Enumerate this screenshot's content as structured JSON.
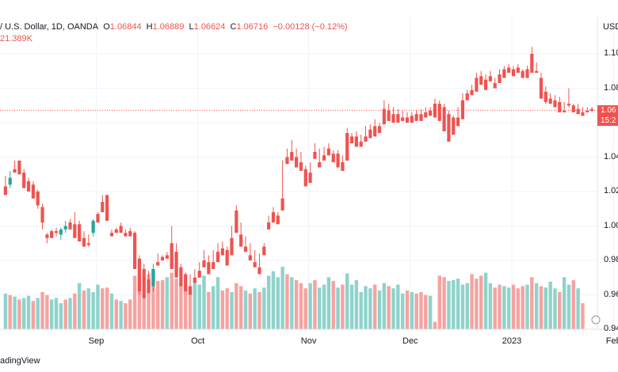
{
  "header": {
    "symbol": "/ U.S. Dollar, 1D, OANDA",
    "open_label": "O",
    "open": "1.06844",
    "high_label": "H",
    "high": "1.06889",
    "low_label": "L",
    "low": "1.06624",
    "close_label": "C",
    "close": "1.06716",
    "change": "−0.00128 (−0.12%)",
    "volume": "21.389K"
  },
  "axis": {
    "currency": "USD",
    "price_tag_value": "1.06",
    "price_tag_time": "15:2",
    "brand": "adingView"
  },
  "colors": {
    "up": "#26a69a",
    "down": "#ef5350",
    "vol_up": "#8fd3cb",
    "vol_down": "#f5a3a1",
    "grid": "#f0f3fa"
  },
  "chart_data": {
    "type": "candlestick",
    "y_ticks": [
      "1.10",
      "1.08",
      "1.06",
      "1.04",
      "1.02",
      "1.00",
      "0.98",
      "0.96",
      "0.94"
    ],
    "x_labels": [
      "Sep",
      "Oct",
      "Nov",
      "Dec",
      "2023",
      "Feb"
    ],
    "ylim": [
      0.94,
      1.105
    ],
    "last_close": 1.06716,
    "candles": [
      [
        1.023,
        1.029,
        1.019,
        1.018
      ],
      [
        1.024,
        1.032,
        1.022,
        1.028
      ],
      [
        1.033,
        1.038,
        1.031,
        1.031
      ],
      [
        1.038,
        1.036,
        1.034,
        1.03
      ],
      [
        1.031,
        1.033,
        1.024,
        1.022
      ],
      [
        1.026,
        1.028,
        1.02,
        1.02
      ],
      [
        1.024,
        1.026,
        1.018,
        1.016
      ],
      [
        1.02,
        1.021,
        1.01,
        1.012
      ],
      [
        1.011,
        1.013,
        0.998,
        1.002
      ],
      [
        0.995,
        0.996,
        0.99,
        0.993
      ],
      [
        0.997,
        0.998,
        0.996,
        0.993
      ],
      [
        0.997,
        0.999,
        0.994,
        0.996
      ],
      [
        0.995,
        0.999,
        0.992,
        0.998
      ],
      [
        0.998,
        1.003,
        0.996,
        1.0
      ],
      [
        1.002,
        1.004,
        1.0,
        0.998
      ],
      [
        1.001,
        1.008,
        0.997,
        0.993
      ],
      [
        1.001,
        1.003,
        0.991,
        0.991
      ],
      [
        0.993,
        0.997,
        0.988,
        0.988
      ],
      [
        0.99,
        0.995,
        0.988,
        0.989
      ],
      [
        0.996,
        1.004,
        0.994,
        1.003
      ],
      [
        1.007,
        1.008,
        1.003,
        1.002
      ],
      [
        1.014,
        1.018,
        1.009,
        1.008
      ],
      [
        1.018,
        1.017,
        1.003,
        1.003
      ],
      [
        0.996,
        0.998,
        0.996,
        0.994
      ],
      [
        0.998,
        0.999,
        0.996,
        0.996
      ],
      [
        1.0,
        1.002,
        0.996,
        0.996
      ],
      [
        0.996,
        0.998,
        0.995,
        0.994
      ],
      [
        0.997,
        0.999,
        0.995,
        0.994
      ],
      [
        0.996,
        0.997,
        0.978,
        0.975
      ],
      [
        0.981,
        0.983,
        0.96,
        0.962
      ],
      [
        0.975,
        0.978,
        0.96,
        0.958
      ],
      [
        0.969,
        0.974,
        0.964,
        0.961
      ],
      [
        0.965,
        0.978,
        0.962,
        0.975
      ],
      [
        0.979,
        0.984,
        0.978,
        0.977
      ],
      [
        0.982,
        0.983,
        0.981,
        0.98
      ],
      [
        0.983,
        0.985,
        0.982,
        0.981
      ],
      [
        0.99,
        1.0,
        0.978,
        0.975
      ],
      [
        0.985,
        0.99,
        0.975,
        0.97
      ],
      [
        0.976,
        0.978,
        0.966,
        0.965
      ],
      [
        0.972,
        0.973,
        0.962,
        0.962
      ],
      [
        0.965,
        0.972,
        0.961,
        0.96
      ],
      [
        0.97,
        0.975,
        0.968,
        0.967
      ],
      [
        0.974,
        0.979,
        0.972,
        0.97
      ],
      [
        0.98,
        0.986,
        0.978,
        0.976
      ],
      [
        0.979,
        0.983,
        0.972,
        0.972
      ],
      [
        0.979,
        0.986,
        0.977,
        0.975
      ],
      [
        0.985,
        0.99,
        0.981,
        0.979
      ],
      [
        0.987,
        0.991,
        0.985,
        0.983
      ],
      [
        0.986,
        0.988,
        0.98,
        0.977
      ],
      [
        0.993,
        1.0,
        0.985,
        0.983
      ],
      [
        1.009,
        1.012,
        0.999,
        0.996
      ],
      [
        0.995,
        1.002,
        0.99,
        0.988
      ],
      [
        0.988,
        0.994,
        0.987,
        0.985
      ],
      [
        0.983,
        0.99,
        0.981,
        0.98
      ],
      [
        0.979,
        0.986,
        0.976,
        0.976
      ],
      [
        0.976,
        0.984,
        0.973,
        0.972
      ],
      [
        0.988,
        0.99,
        0.985,
        0.983
      ],
      [
        1.002,
        1.006,
        1.0,
        0.998
      ],
      [
        1.008,
        1.011,
        1.002,
        1.002
      ],
      [
        1.006,
        1.008,
        1.002,
        1.001
      ],
      [
        1.016,
        1.038,
        1.01,
        1.009
      ],
      [
        1.04,
        1.045,
        1.038,
        1.036
      ],
      [
        1.043,
        1.05,
        1.04,
        1.038
      ],
      [
        1.04,
        1.045,
        1.034,
        1.034
      ],
      [
        1.037,
        1.043,
        1.035,
        1.032
      ],
      [
        1.033,
        1.035,
        1.024,
        1.023
      ],
      [
        1.031,
        1.037,
        1.027,
        1.025
      ],
      [
        1.043,
        1.048,
        1.04,
        1.039
      ],
      [
        1.037,
        1.045,
        1.035,
        1.034
      ],
      [
        1.041,
        1.046,
        1.04,
        1.038
      ],
      [
        1.045,
        1.048,
        1.043,
        1.041
      ],
      [
        1.042,
        1.044,
        1.038,
        1.037
      ],
      [
        1.042,
        1.044,
        1.034,
        1.034
      ],
      [
        1.037,
        1.041,
        1.034,
        1.032
      ],
      [
        1.054,
        1.057,
        1.039,
        1.038
      ],
      [
        1.052,
        1.054,
        1.049,
        1.048
      ],
      [
        1.052,
        1.055,
        1.048,
        1.046
      ],
      [
        1.049,
        1.053,
        1.047,
        1.046
      ],
      [
        1.052,
        1.058,
        1.05,
        1.049
      ],
      [
        1.056,
        1.059,
        1.053,
        1.051
      ],
      [
        1.058,
        1.062,
        1.054,
        1.052
      ],
      [
        1.058,
        1.06,
        1.055,
        1.054
      ],
      [
        1.068,
        1.073,
        1.063,
        1.059
      ],
      [
        1.067,
        1.071,
        1.062,
        1.061
      ],
      [
        1.065,
        1.069,
        1.062,
        1.06
      ],
      [
        1.065,
        1.068,
        1.062,
        1.06
      ],
      [
        1.063,
        1.067,
        1.061,
        1.061
      ],
      [
        1.063,
        1.066,
        1.061,
        1.06
      ],
      [
        1.064,
        1.066,
        1.061,
        1.06
      ],
      [
        1.065,
        1.067,
        1.062,
        1.061
      ],
      [
        1.065,
        1.068,
        1.061,
        1.061
      ],
      [
        1.066,
        1.069,
        1.064,
        1.063
      ],
      [
        1.067,
        1.069,
        1.065,
        1.064
      ],
      [
        1.071,
        1.074,
        1.065,
        1.063
      ],
      [
        1.071,
        1.073,
        1.062,
        1.061
      ],
      [
        1.069,
        1.071,
        1.059,
        1.055
      ],
      [
        1.065,
        1.067,
        1.05,
        1.049
      ],
      [
        1.063,
        1.064,
        1.053,
        1.053
      ],
      [
        1.063,
        1.069,
        1.059,
        1.058
      ],
      [
        1.073,
        1.077,
        1.062,
        1.062
      ],
      [
        1.077,
        1.079,
        1.074,
        1.073
      ],
      [
        1.079,
        1.082,
        1.077,
        1.076
      ],
      [
        1.086,
        1.089,
        1.079,
        1.078
      ],
      [
        1.087,
        1.09,
        1.083,
        1.082
      ],
      [
        1.085,
        1.088,
        1.08,
        1.079
      ],
      [
        1.087,
        1.09,
        1.085,
        1.084
      ],
      [
        1.083,
        1.086,
        1.081,
        1.08
      ],
      [
        1.088,
        1.091,
        1.084,
        1.083
      ],
      [
        1.091,
        1.093,
        1.087,
        1.086
      ],
      [
        1.092,
        1.094,
        1.09,
        1.089
      ],
      [
        1.091,
        1.093,
        1.088,
        1.087
      ],
      [
        1.092,
        1.094,
        1.089,
        1.089
      ],
      [
        1.09,
        1.091,
        1.087,
        1.086
      ],
      [
        1.091,
        1.093,
        1.088,
        1.086
      ],
      [
        1.1,
        1.104,
        1.09,
        1.089
      ],
      [
        1.09,
        1.095,
        1.09,
        1.089
      ],
      [
        1.086,
        1.089,
        1.074,
        1.074
      ],
      [
        1.078,
        1.081,
        1.071,
        1.072
      ],
      [
        1.074,
        1.077,
        1.071,
        1.071
      ],
      [
        1.073,
        1.076,
        1.07,
        1.069
      ],
      [
        1.072,
        1.075,
        1.066,
        1.066
      ],
      [
        1.067,
        1.072,
        1.066,
        1.066
      ],
      [
        1.071,
        1.08,
        1.069,
        1.07
      ],
      [
        1.07,
        1.071,
        1.067,
        1.066
      ],
      [
        1.068,
        1.071,
        1.066,
        1.065
      ],
      [
        1.066,
        1.069,
        1.065,
        1.064
      ],
      [
        1.067,
        1.069,
        1.066,
        1.066
      ],
      [
        1.068,
        1.069,
        1.066,
        1.067
      ]
    ],
    "volumes": [
      [
        0.48,
        1
      ],
      [
        0.46,
        0
      ],
      [
        0.44,
        1
      ],
      [
        0.4,
        0
      ],
      [
        0.42,
        1
      ],
      [
        0.45,
        1
      ],
      [
        0.38,
        0
      ],
      [
        0.42,
        1
      ],
      [
        0.5,
        0
      ],
      [
        0.46,
        0
      ],
      [
        0.4,
        1
      ],
      [
        0.42,
        1
      ],
      [
        0.35,
        1
      ],
      [
        0.4,
        0
      ],
      [
        0.42,
        1
      ],
      [
        0.48,
        0
      ],
      [
        0.62,
        1
      ],
      [
        0.52,
        0
      ],
      [
        0.55,
        1
      ],
      [
        0.5,
        1
      ],
      [
        0.6,
        1
      ],
      [
        0.55,
        0
      ],
      [
        0.56,
        0
      ],
      [
        0.48,
        1
      ],
      [
        0.4,
        0
      ],
      [
        0.38,
        1
      ],
      [
        0.35,
        0
      ],
      [
        0.4,
        0
      ],
      [
        0.72,
        0
      ],
      [
        0.78,
        0
      ],
      [
        0.7,
        0
      ],
      [
        0.74,
        0
      ],
      [
        0.8,
        0
      ],
      [
        0.65,
        0
      ],
      [
        0.66,
        0
      ],
      [
        0.7,
        1
      ],
      [
        0.76,
        0
      ],
      [
        0.68,
        0
      ],
      [
        0.62,
        0
      ],
      [
        0.6,
        0
      ],
      [
        0.58,
        0
      ],
      [
        0.66,
        1
      ],
      [
        0.6,
        1
      ],
      [
        0.72,
        1
      ],
      [
        0.5,
        0
      ],
      [
        0.58,
        1
      ],
      [
        0.7,
        1
      ],
      [
        0.52,
        0
      ],
      [
        0.55,
        0
      ],
      [
        0.5,
        1
      ],
      [
        0.62,
        0
      ],
      [
        0.58,
        0
      ],
      [
        0.52,
        1
      ],
      [
        0.48,
        0
      ],
      [
        0.55,
        1
      ],
      [
        0.5,
        0
      ],
      [
        0.56,
        1
      ],
      [
        0.72,
        1
      ],
      [
        0.78,
        1
      ],
      [
        0.7,
        1
      ],
      [
        0.84,
        1
      ],
      [
        0.74,
        0
      ],
      [
        0.7,
        1
      ],
      [
        0.66,
        0
      ],
      [
        0.62,
        0
      ],
      [
        0.55,
        0
      ],
      [
        0.62,
        1
      ],
      [
        0.66,
        0
      ],
      [
        0.56,
        1
      ],
      [
        0.6,
        1
      ],
      [
        0.7,
        1
      ],
      [
        0.65,
        0
      ],
      [
        0.56,
        1
      ],
      [
        0.6,
        0
      ],
      [
        0.75,
        1
      ],
      [
        0.6,
        1
      ],
      [
        0.66,
        1
      ],
      [
        0.5,
        1
      ],
      [
        0.58,
        1
      ],
      [
        0.55,
        1
      ],
      [
        0.6,
        0
      ],
      [
        0.52,
        1
      ],
      [
        0.62,
        1
      ],
      [
        0.58,
        0
      ],
      [
        0.55,
        1
      ],
      [
        0.6,
        1
      ],
      [
        0.48,
        1
      ],
      [
        0.52,
        0
      ],
      [
        0.5,
        1
      ],
      [
        0.48,
        0
      ],
      [
        0.5,
        0
      ],
      [
        0.46,
        0
      ],
      [
        0.45,
        1
      ],
      [
        0.1,
        0
      ],
      [
        0.72,
        0
      ],
      [
        0.7,
        0
      ],
      [
        0.65,
        1
      ],
      [
        0.66,
        1
      ],
      [
        0.68,
        1
      ],
      [
        0.6,
        1
      ],
      [
        0.62,
        1
      ],
      [
        0.74,
        0
      ],
      [
        0.68,
        0
      ],
      [
        0.72,
        0
      ],
      [
        0.76,
        1
      ],
      [
        0.62,
        1
      ],
      [
        0.56,
        0
      ],
      [
        0.6,
        0
      ],
      [
        0.58,
        1
      ],
      [
        0.56,
        1
      ],
      [
        0.6,
        0
      ],
      [
        0.55,
        0
      ],
      [
        0.58,
        0
      ],
      [
        0.6,
        1
      ],
      [
        0.7,
        0
      ],
      [
        0.62,
        1
      ],
      [
        0.58,
        0
      ],
      [
        0.56,
        1
      ],
      [
        0.64,
        1
      ],
      [
        0.55,
        1
      ],
      [
        0.5,
        0
      ],
      [
        0.7,
        1
      ],
      [
        0.6,
        1
      ],
      [
        0.66,
        0
      ],
      [
        0.55,
        1
      ],
      [
        0.35,
        0
      ]
    ]
  }
}
